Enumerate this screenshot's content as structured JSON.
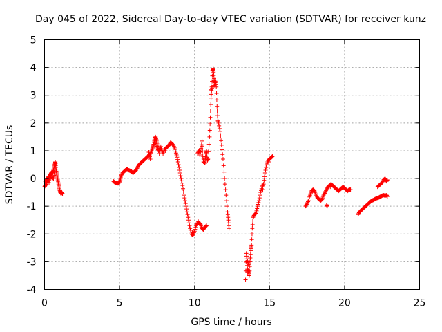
{
  "chart_data": {
    "type": "scatter",
    "title": "Day 045 of 2022, Sidereal Day-to-day VTEC variation (SDTVAR) for receiver kunz",
    "xlabel": "GPS time / hours",
    "ylabel": "SDTVAR / TECUs",
    "xlim": [
      0,
      25
    ],
    "ylim": [
      -4,
      5
    ],
    "xticks": [
      "0",
      "5",
      "10",
      "15",
      "20",
      "25"
    ],
    "yticks": [
      "-4",
      "-3",
      "-2",
      "-1",
      "0",
      "1",
      "2",
      "3",
      "4",
      "5"
    ],
    "grid": true,
    "marker": "plus",
    "color": "#ff0000",
    "series": [
      {
        "points": [
          [
            0.0,
            -0.3
          ],
          [
            0.05,
            -0.25
          ],
          [
            0.1,
            -0.2
          ],
          [
            0.15,
            -0.1
          ],
          [
            0.2,
            -0.05
          ],
          [
            0.25,
            0.0
          ],
          [
            0.3,
            0.05
          ],
          [
            0.35,
            0.1
          ],
          [
            0.4,
            0.15
          ],
          [
            0.45,
            0.2
          ],
          [
            0.5,
            0.25
          ],
          [
            0.55,
            0.2
          ],
          [
            0.6,
            0.3
          ],
          [
            0.65,
            0.45
          ],
          [
            0.7,
            0.55
          ],
          [
            0.72,
            0.6
          ],
          [
            0.75,
            0.4
          ],
          [
            0.8,
            0.2
          ],
          [
            0.85,
            0.05
          ],
          [
            0.9,
            -0.1
          ],
          [
            0.95,
            -0.25
          ],
          [
            1.0,
            -0.4
          ],
          [
            1.05,
            -0.5
          ],
          [
            1.1,
            -0.55
          ],
          [
            1.15,
            -0.5
          ],
          [
            1.2,
            -0.55
          ],
          [
            0.05,
            -0.1
          ],
          [
            0.15,
            0.0
          ],
          [
            0.3,
            -0.15
          ],
          [
            0.45,
            0.05
          ],
          [
            0.6,
            0.0
          ],
          [
            0.7,
            0.35
          ]
        ]
      },
      {
        "points": [
          [
            4.6,
            -0.1
          ],
          [
            4.7,
            -0.15
          ],
          [
            4.8,
            -0.15
          ],
          [
            4.9,
            -0.18
          ],
          [
            5.0,
            -0.15
          ],
          [
            5.05,
            -0.05
          ],
          [
            5.1,
            0.1
          ],
          [
            5.2,
            0.2
          ],
          [
            5.3,
            0.25
          ],
          [
            5.4,
            0.3
          ],
          [
            5.5,
            0.35
          ],
          [
            5.6,
            0.3
          ],
          [
            5.7,
            0.28
          ],
          [
            5.8,
            0.25
          ],
          [
            5.9,
            0.2
          ],
          [
            6.0,
            0.25
          ],
          [
            6.1,
            0.3
          ],
          [
            6.2,
            0.4
          ],
          [
            6.3,
            0.5
          ],
          [
            6.4,
            0.55
          ],
          [
            6.5,
            0.6
          ],
          [
            6.6,
            0.65
          ],
          [
            6.7,
            0.7
          ],
          [
            6.8,
            0.75
          ],
          [
            6.9,
            0.8
          ],
          [
            7.0,
            0.85
          ],
          [
            7.1,
            0.95
          ],
          [
            7.2,
            1.1
          ],
          [
            7.3,
            1.3
          ],
          [
            7.35,
            1.45
          ],
          [
            7.4,
            1.5
          ],
          [
            7.45,
            1.4
          ],
          [
            7.5,
            1.25
          ],
          [
            7.55,
            1.1
          ],
          [
            7.6,
            1.0
          ],
          [
            7.7,
            1.1
          ],
          [
            7.8,
            1.05
          ],
          [
            7.9,
            0.9
          ],
          [
            8.0,
            1.05
          ],
          [
            8.1,
            1.1
          ],
          [
            8.2,
            1.15
          ],
          [
            8.3,
            1.2
          ],
          [
            8.4,
            1.3
          ],
          [
            8.5,
            1.25
          ],
          [
            8.6,
            1.2
          ],
          [
            8.7,
            1.05
          ],
          [
            8.8,
            0.85
          ],
          [
            8.9,
            0.6
          ],
          [
            9.0,
            0.3
          ],
          [
            9.1,
            0.0
          ],
          [
            9.2,
            -0.25
          ],
          [
            9.3,
            -0.6
          ],
          [
            9.4,
            -0.9
          ],
          [
            9.5,
            -1.2
          ],
          [
            9.6,
            -1.5
          ],
          [
            9.7,
            -1.8
          ],
          [
            9.8,
            -2.0
          ],
          [
            9.9,
            -2.05
          ],
          [
            10.0,
            -1.9
          ],
          [
            10.1,
            -1.7
          ],
          [
            10.2,
            -1.6
          ],
          [
            10.3,
            -1.6
          ],
          [
            10.4,
            -1.65
          ],
          [
            10.5,
            -1.8
          ],
          [
            10.6,
            -1.85
          ],
          [
            10.7,
            -1.75
          ],
          [
            10.8,
            -1.7
          ],
          [
            7.15,
            1.0
          ],
          [
            7.25,
            1.2
          ],
          [
            7.4,
            1.3
          ],
          [
            7.65,
            0.9
          ],
          [
            7.75,
            1.15
          ],
          [
            6.95,
            0.95
          ],
          [
            7.05,
            0.7
          ],
          [
            8.05,
            1.0
          ],
          [
            9.85,
            -1.95
          ],
          [
            10.25,
            -1.55
          ]
        ]
      },
      {
        "points": [
          [
            10.2,
            0.9
          ],
          [
            10.3,
            1.0
          ],
          [
            10.4,
            0.95
          ],
          [
            10.5,
            1.35
          ],
          [
            10.55,
            0.8
          ],
          [
            10.6,
            0.6
          ],
          [
            10.7,
            0.55
          ],
          [
            10.75,
            0.9
          ],
          [
            10.8,
            1.0
          ],
          [
            10.85,
            0.65
          ],
          [
            10.9,
            0.7
          ],
          [
            11.0,
            1.5
          ],
          [
            11.05,
            2.2
          ],
          [
            11.1,
            2.9
          ],
          [
            11.15,
            3.3
          ],
          [
            11.2,
            3.9
          ],
          [
            11.25,
            3.95
          ],
          [
            11.3,
            3.6
          ],
          [
            11.35,
            3.4
          ],
          [
            11.4,
            3.55
          ],
          [
            11.45,
            3.3
          ],
          [
            11.5,
            2.6
          ],
          [
            11.55,
            2.1
          ],
          [
            11.6,
            2.0
          ],
          [
            11.7,
            1.7
          ],
          [
            11.8,
            1.2
          ],
          [
            11.9,
            0.7
          ],
          [
            12.0,
            0.0
          ],
          [
            12.1,
            -0.6
          ],
          [
            12.2,
            -1.2
          ],
          [
            12.25,
            -1.5
          ],
          [
            12.3,
            -1.8
          ],
          [
            10.35,
            0.85
          ],
          [
            10.65,
            0.7
          ],
          [
            11.1,
            3.2
          ],
          [
            11.3,
            3.35
          ]
        ]
      },
      {
        "points": [
          [
            13.4,
            -3.65
          ],
          [
            13.45,
            -2.7
          ],
          [
            13.5,
            -3.0
          ],
          [
            13.55,
            -3.4
          ],
          [
            13.6,
            -3.3
          ],
          [
            13.65,
            -3.5
          ],
          [
            13.7,
            -3.0
          ],
          [
            13.75,
            -2.6
          ],
          [
            13.8,
            -2.4
          ],
          [
            13.85,
            -1.8
          ],
          [
            13.9,
            -1.4
          ],
          [
            14.0,
            -1.3
          ],
          [
            14.1,
            -1.25
          ],
          [
            14.2,
            -1.0
          ],
          [
            14.3,
            -0.8
          ],
          [
            14.4,
            -0.5
          ],
          [
            14.5,
            -0.3
          ],
          [
            14.6,
            -0.2
          ],
          [
            14.7,
            0.2
          ],
          [
            14.8,
            0.5
          ],
          [
            14.9,
            0.65
          ],
          [
            15.0,
            0.7
          ],
          [
            15.1,
            0.75
          ],
          [
            15.2,
            0.8
          ],
          [
            13.5,
            -2.9
          ],
          [
            13.6,
            -3.1
          ],
          [
            13.95,
            -1.35
          ],
          [
            14.55,
            -0.4
          ],
          [
            14.95,
            0.6
          ]
        ]
      },
      {
        "points": [
          [
            17.4,
            -1.0
          ],
          [
            17.5,
            -0.9
          ],
          [
            17.6,
            -0.8
          ],
          [
            17.7,
            -0.6
          ],
          [
            17.8,
            -0.45
          ],
          [
            17.9,
            -0.4
          ],
          [
            18.0,
            -0.45
          ],
          [
            18.1,
            -0.6
          ],
          [
            18.2,
            -0.7
          ],
          [
            18.3,
            -0.75
          ],
          [
            18.4,
            -0.8
          ],
          [
            18.5,
            -0.75
          ],
          [
            18.6,
            -0.6
          ],
          [
            18.7,
            -0.5
          ],
          [
            18.8,
            -0.4
          ],
          [
            18.9,
            -0.3
          ],
          [
            19.0,
            -0.25
          ],
          [
            19.1,
            -0.2
          ],
          [
            19.2,
            -0.25
          ],
          [
            19.3,
            -0.3
          ],
          [
            19.4,
            -0.35
          ],
          [
            19.5,
            -0.4
          ],
          [
            19.6,
            -0.45
          ],
          [
            19.7,
            -0.4
          ],
          [
            19.8,
            -0.35
          ],
          [
            19.9,
            -0.3
          ],
          [
            20.0,
            -0.35
          ],
          [
            20.1,
            -0.4
          ],
          [
            20.2,
            -0.45
          ],
          [
            20.3,
            -0.4
          ],
          [
            20.4,
            -0.4
          ],
          [
            18.8,
            -0.95
          ],
          [
            18.85,
            -1.0
          ],
          [
            17.85,
            -0.5
          ],
          [
            19.05,
            -0.3
          ]
        ]
      },
      {
        "points": [
          [
            20.9,
            -1.3
          ],
          [
            21.0,
            -1.2
          ],
          [
            21.1,
            -1.15
          ],
          [
            21.2,
            -1.1
          ],
          [
            21.3,
            -1.05
          ],
          [
            21.4,
            -1.0
          ],
          [
            21.5,
            -0.95
          ],
          [
            21.6,
            -0.9
          ],
          [
            21.7,
            -0.85
          ],
          [
            21.8,
            -0.8
          ],
          [
            21.9,
            -0.78
          ],
          [
            22.0,
            -0.75
          ],
          [
            22.1,
            -0.72
          ],
          [
            22.2,
            -0.7
          ],
          [
            22.3,
            -0.68
          ],
          [
            22.4,
            -0.65
          ],
          [
            22.5,
            -0.62
          ],
          [
            22.6,
            -0.6
          ],
          [
            22.7,
            -0.62
          ],
          [
            22.8,
            -0.6
          ],
          [
            22.85,
            -0.65
          ],
          [
            22.2,
            -0.3
          ],
          [
            22.3,
            -0.25
          ],
          [
            22.4,
            -0.2
          ],
          [
            22.5,
            -0.15
          ],
          [
            22.6,
            -0.05
          ],
          [
            22.7,
            0.0
          ],
          [
            22.75,
            -0.05
          ],
          [
            22.8,
            -0.1
          ],
          [
            22.85,
            -0.05
          ]
        ]
      }
    ]
  }
}
